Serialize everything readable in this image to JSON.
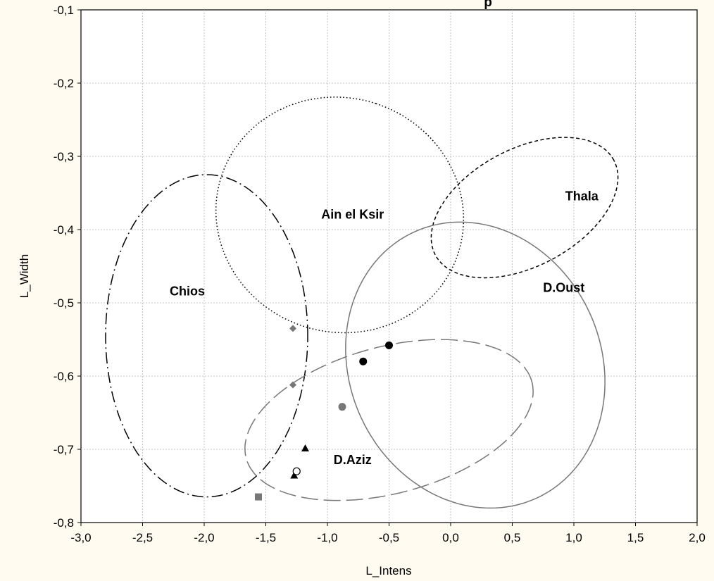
{
  "chart_data": {
    "type": "scatter",
    "title": "",
    "title_visible_fragment": "p",
    "xlabel": "L_Intens",
    "ylabel": "L_Width",
    "xlim": [
      -3.0,
      2.0
    ],
    "ylim": [
      -0.8,
      -0.1
    ],
    "xticks": [
      -3.0,
      -2.5,
      -2.0,
      -1.5,
      -1.0,
      -0.5,
      0.0,
      0.5,
      1.0,
      1.5,
      2.0
    ],
    "xtick_labels": [
      "-3,0",
      "-2,5",
      "-2,0",
      "-1,5",
      "-1,0",
      "-0,5",
      "0,0",
      "0,5",
      "1,0",
      "1,5",
      "2,0"
    ],
    "yticks": [
      -0.1,
      -0.2,
      -0.3,
      -0.4,
      -0.5,
      -0.6,
      -0.7,
      -0.8
    ],
    "ytick_labels": [
      "-0,1",
      "-0,2",
      "-0,3",
      "-0,4",
      "-0,5",
      "-0,6",
      "-0,7",
      "-0,8"
    ],
    "grid": true,
    "ellipses": [
      {
        "label": "Chios",
        "center": [
          -1.98,
          -0.545
        ],
        "semi_x": 0.82,
        "semi_y": 0.22,
        "angle_deg": 0,
        "style": "dash-dot",
        "color": "#000000"
      },
      {
        "label": "Ain el Ksir",
        "center": [
          -0.9,
          -0.38
        ],
        "semi_x": 0.95,
        "semi_y": 0.17,
        "angle_deg": 72,
        "style": "dotted",
        "color": "#000000"
      },
      {
        "label": "Thala",
        "center": [
          0.6,
          -0.37
        ],
        "semi_x": 0.82,
        "semi_y": 0.08,
        "angle_deg": 28,
        "style": "short-dash",
        "color": "#000000"
      },
      {
        "label": "D.Oust",
        "center": [
          0.2,
          -0.585
        ],
        "semi_x": 1.02,
        "semi_y": 0.2,
        "angle_deg": 25,
        "style": "solid",
        "color": "#777777"
      },
      {
        "label": "D.Aziz",
        "center": [
          -0.5,
          -0.66
        ],
        "semi_x": 1.2,
        "semi_y": 0.1,
        "angle_deg": 15,
        "style": "long-dash",
        "color": "#777777"
      }
    ],
    "labels": [
      {
        "text": "Chios",
        "x": -2.28,
        "y": -0.49
      },
      {
        "text": "Ain el Ksir",
        "x": -1.05,
        "y": -0.385
      },
      {
        "text": "Thala",
        "x": 0.93,
        "y": -0.36
      },
      {
        "text": "D.Oust",
        "x": 0.75,
        "y": -0.485
      },
      {
        "text": "D.Aziz",
        "x": -0.95,
        "y": -0.72
      }
    ],
    "points": [
      {
        "x": -1.28,
        "y": -0.535,
        "marker": "diamond",
        "color": "#777777"
      },
      {
        "x": -1.28,
        "y": -0.612,
        "marker": "diamond",
        "color": "#777777"
      },
      {
        "x": -0.71,
        "y": -0.58,
        "marker": "circle-filled",
        "color": "#000000"
      },
      {
        "x": -0.5,
        "y": -0.558,
        "marker": "circle-filled",
        "color": "#000000"
      },
      {
        "x": -0.88,
        "y": -0.642,
        "marker": "circle-filled",
        "color": "#777777"
      },
      {
        "x": -1.18,
        "y": -0.699,
        "marker": "triangle",
        "color": "#000000"
      },
      {
        "x": -1.27,
        "y": -0.736,
        "marker": "triangle",
        "color": "#000000"
      },
      {
        "x": -1.25,
        "y": -0.73,
        "marker": "circle-open",
        "color": "#000000"
      },
      {
        "x": -1.56,
        "y": -0.765,
        "marker": "square",
        "color": "#777777"
      }
    ]
  }
}
